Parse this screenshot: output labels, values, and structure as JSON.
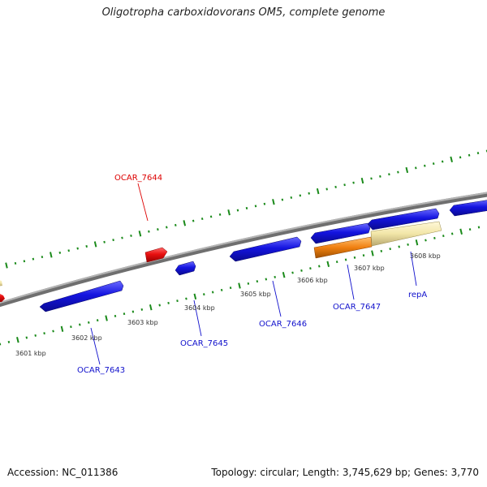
{
  "header": {
    "title": "Oligotropha carboxidovorans OM5, complete genome"
  },
  "footer": {
    "accession": "Accession: NC_011386",
    "summary": "Topology: circular; Length: 3,745,629 bp; Genes: 3,770"
  },
  "colors": {
    "backbone": "#8a8a8a",
    "tick_green": "#1a8a1a",
    "gene_forward_blue": "#1010dd",
    "gene_red": "#e01010",
    "gene_orange": "#f08010",
    "gene_tan": "#f2e6a8",
    "label_blue": "#1010cc",
    "label_red": "#dd0000"
  },
  "scale_labels": [
    "3601 kbp",
    "3602 kbp",
    "3603 kbp",
    "3604 kbp",
    "3605 kbp",
    "3606 kbp",
    "3607 kbp",
    "3608 kbp"
  ],
  "gene_labels": [
    {
      "text": "OCAR_7644",
      "color": "red"
    },
    {
      "text": "OCAR_7643",
      "color": "blue"
    },
    {
      "text": "OCAR_7645",
      "color": "blue"
    },
    {
      "text": "OCAR_7646",
      "color": "blue"
    },
    {
      "text": "OCAR_7647",
      "color": "blue"
    },
    {
      "text": "repA",
      "color": "blue"
    }
  ]
}
